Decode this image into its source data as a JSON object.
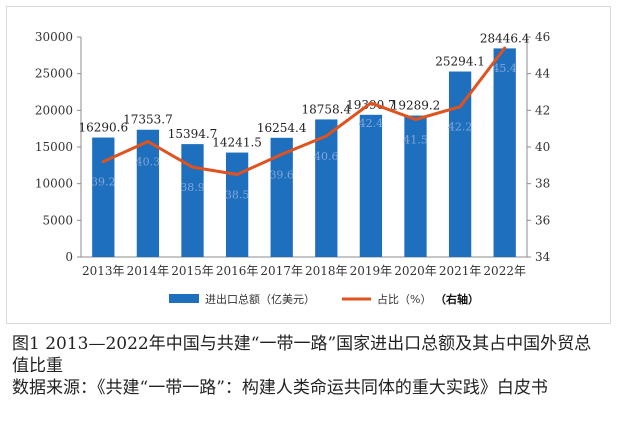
{
  "chart_data": {
    "type": "bar",
    "categories": [
      "2013年",
      "2014年",
      "2015年",
      "2016年",
      "2017年",
      "2018年",
      "2019年",
      "2020年",
      "2021年",
      "2022年"
    ],
    "series": [
      {
        "name": "进出口总额（亿美元）",
        "type": "bar",
        "axis": "left",
        "color": "#1f6fbf",
        "values": [
          16290.6,
          17353.7,
          15394.7,
          14241.5,
          16254.4,
          18758.4,
          19390.7,
          19289.2,
          25294.1,
          28446.4
        ],
        "labels": [
          "16290.6",
          "17353.7",
          "15394.7",
          "14241.5",
          "16254.4",
          "18758.4",
          "19390.7",
          "19289.2",
          "25294.1",
          "28446.4"
        ]
      },
      {
        "name": "占比（%）（右轴）",
        "type": "line",
        "axis": "right",
        "color": "#e0521e",
        "values": [
          39.2,
          40.3,
          38.9,
          38.5,
          39.6,
          40.6,
          42.4,
          41.5,
          42.2,
          45.4
        ],
        "labels": [
          "39.2",
          "40.3",
          "38.9",
          "38.5",
          "39.6",
          "40.6",
          "42.4",
          "41.5",
          "42.2",
          "45.4"
        ]
      }
    ],
    "left_axis": {
      "min": 0,
      "max": 30000,
      "ticks": [
        "0",
        "5000",
        "10000",
        "15000",
        "20000",
        "25000",
        "30000"
      ]
    },
    "right_axis": {
      "min": 34,
      "max": 46,
      "ticks": [
        "34",
        "36",
        "38",
        "40",
        "42",
        "44",
        "46"
      ]
    },
    "legend": [
      {
        "label": "进出口总额（亿美元）",
        "swatch": "bar"
      },
      {
        "label": "占比（%）",
        "suffix": "（右轴）",
        "swatch": "line"
      }
    ],
    "legend_position": "bottom",
    "grid": false
  },
  "caption": {
    "title": "图1 2013—2022年中国与共建“一带一路”国家进出口总额及其占中国外贸总值比重",
    "source": "数据来源：《共建“一带一路”：构建人类命运共同体的重大实践》白皮书"
  }
}
